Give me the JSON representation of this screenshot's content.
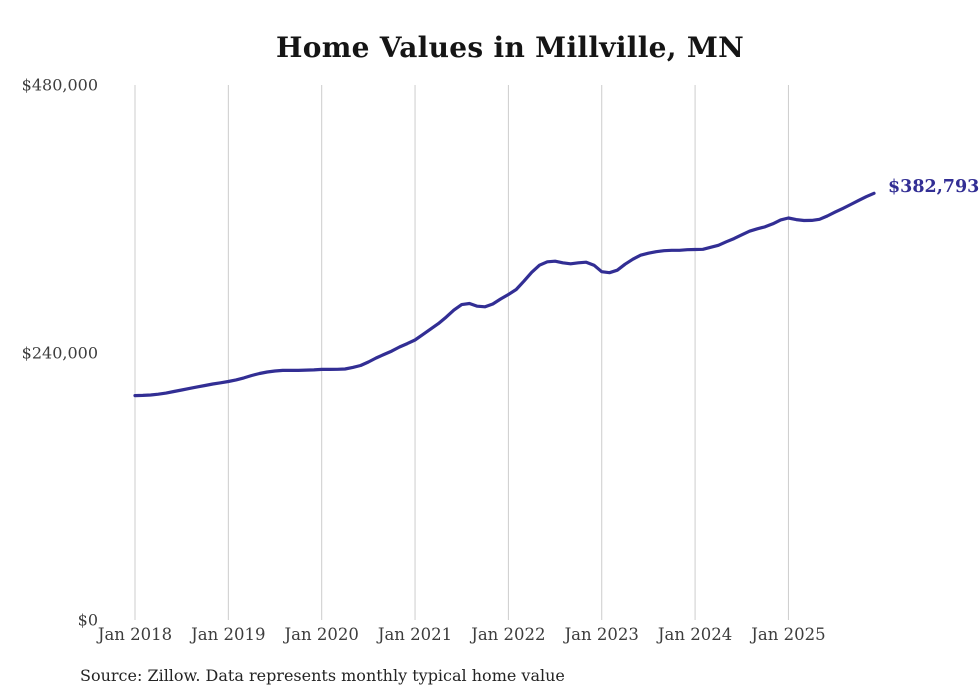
{
  "title": "Home Values in Millville, MN",
  "source_note": "Source: Zillow. Data represents monthly typical home value",
  "end_label": "$382,793",
  "colors": {
    "line": "#322e94",
    "end_label": "#322e94",
    "grid": "#cccccc",
    "title_text": "#151515",
    "axis_text": "#3d3d3d",
    "source_text": "#242424",
    "background": "#ffffff"
  },
  "chart_data": {
    "type": "line",
    "title": "Home Values in Millville, MN",
    "series_name": "Typical home value",
    "frequency": "monthly",
    "x_start": "Jan 2018",
    "x_end": "Dec 2025",
    "x_ticks": [
      "Jan 2018",
      "Jan 2019",
      "Jan 2020",
      "Jan 2021",
      "Jan 2022",
      "Jan 2023",
      "Jan 2024",
      "Jan 2025"
    ],
    "y_ticks": [
      {
        "label": "$0",
        "value": 0
      },
      {
        "label": "$240,000",
        "value": 240000
      },
      {
        "label": "$480,000",
        "value": 480000
      }
    ],
    "ylim": [
      0,
      480000
    ],
    "grid": "vertical-only",
    "legend": "none",
    "final_value": 382793,
    "values": [
      201300,
      201500,
      201900,
      202600,
      203600,
      205000,
      206400,
      207800,
      209100,
      210400,
      211700,
      212800,
      214000,
      215400,
      217200,
      219400,
      221200,
      222500,
      223400,
      223900,
      223900,
      223900,
      224200,
      224400,
      224800,
      224800,
      224900,
      225200,
      226600,
      228300,
      231500,
      235100,
      238200,
      241300,
      244900,
      248000,
      251200,
      256100,
      261000,
      265900,
      271800,
      278000,
      283000,
      284000,
      281500,
      281000,
      283500,
      288000,
      292000,
      296500,
      304000,
      312000,
      318300,
      321400,
      321900,
      320500,
      319600,
      320500,
      321000,
      318300,
      312500,
      311600,
      313800,
      319200,
      323700,
      327300,
      329100,
      330400,
      331300,
      331700,
      331700,
      332200,
      332400,
      332600,
      334400,
      336200,
      339300,
      342200,
      345600,
      348800,
      351000,
      352800,
      355500,
      359000,
      360700,
      359200,
      358400,
      358500,
      359500,
      362500,
      366000,
      369300,
      372800,
      376300,
      379800,
      382793
    ]
  }
}
